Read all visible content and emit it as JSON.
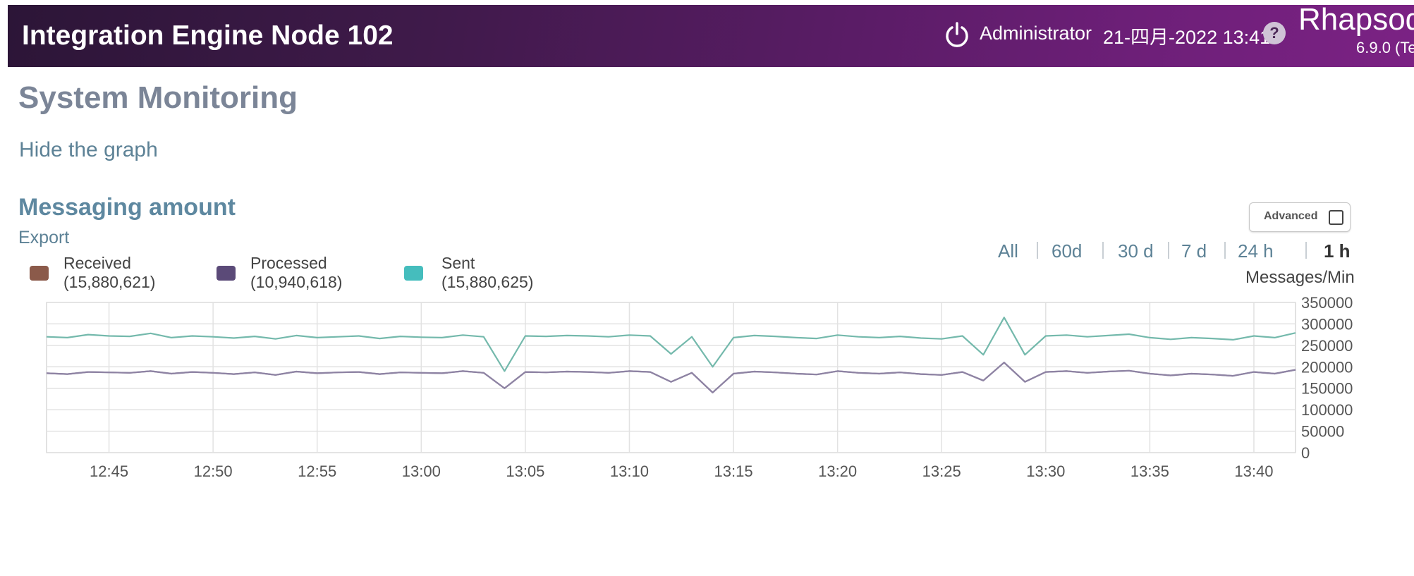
{
  "header": {
    "app_title": "Integration Engine Node 102",
    "power_icon": "power-icon",
    "user": "Administrator",
    "datetime": "21-四月-2022 13:41",
    "help_label": "?",
    "brand": "Rhapsod",
    "version": "6.9.0 (Te"
  },
  "page": {
    "title": "System Monitoring",
    "hide_graph_label": "Hide the graph",
    "section_title": "Messaging amount",
    "export_label": "Export",
    "advanced_label": "Advanced"
  },
  "time_ranges": {
    "all": "All",
    "d60": "60d",
    "d30": "30 d",
    "d7": "7 d",
    "h24": "24 h",
    "h1": "1 h",
    "selected": "1 h"
  },
  "legend": {
    "received": {
      "name": "Received",
      "count": "(15,880,621)"
    },
    "processed": {
      "name": "Processed",
      "count": "(10,940,618)"
    },
    "sent": {
      "name": "Sent",
      "count": "(15,880,625)"
    }
  },
  "colors": {
    "received": "#8b5a4a",
    "processed": "#5b4a78",
    "sent": "#45bdbd",
    "sent_line": "#74b9ac",
    "processed_line": "#8e83a3"
  },
  "chart_data": {
    "type": "line",
    "ylabel": "Messages/Min",
    "ylim": [
      0,
      350000
    ],
    "yticks": [
      "350000",
      "300000",
      "250000",
      "200000",
      "150000",
      "100000",
      "50000",
      "0"
    ],
    "xticks": [
      "12:45",
      "12:50",
      "12:55",
      "13:00",
      "13:05",
      "13:10",
      "13:15",
      "13:20",
      "13:25",
      "13:30",
      "13:35",
      "13:40"
    ],
    "x_start": "12:42",
    "x_end": "13:42",
    "grid": true,
    "x": [
      "12:42",
      "12:43",
      "12:44",
      "12:45",
      "12:46",
      "12:47",
      "12:48",
      "12:49",
      "12:50",
      "12:51",
      "12:52",
      "12:53",
      "12:54",
      "12:55",
      "12:56",
      "12:57",
      "12:58",
      "12:59",
      "13:00",
      "13:01",
      "13:02",
      "13:03",
      "13:04",
      "13:05",
      "13:06",
      "13:07",
      "13:08",
      "13:09",
      "13:10",
      "13:11",
      "13:12",
      "13:13",
      "13:14",
      "13:15",
      "13:16",
      "13:17",
      "13:18",
      "13:19",
      "13:20",
      "13:21",
      "13:22",
      "13:23",
      "13:24",
      "13:25",
      "13:26",
      "13:27",
      "13:28",
      "13:29",
      "13:30",
      "13:31",
      "13:32",
      "13:33",
      "13:34",
      "13:35",
      "13:36",
      "13:37",
      "13:38",
      "13:39",
      "13:40",
      "13:41",
      "13:42"
    ],
    "series": [
      {
        "name": "Sent",
        "values": [
          270000,
          268000,
          275000,
          272000,
          271000,
          278000,
          268000,
          272000,
          270000,
          267000,
          271000,
          265000,
          273000,
          268000,
          270000,
          272000,
          266000,
          271000,
          269000,
          268000,
          274000,
          270000,
          190000,
          272000,
          271000,
          273000,
          272000,
          270000,
          274000,
          272000,
          230000,
          270000,
          200000,
          268000,
          273000,
          271000,
          268000,
          266000,
          274000,
          270000,
          268000,
          271000,
          267000,
          265000,
          272000,
          228000,
          315000,
          228000,
          272000,
          274000,
          270000,
          273000,
          276000,
          268000,
          264000,
          268000,
          266000,
          263000,
          272000,
          268000,
          279000
        ]
      },
      {
        "name": "Processed",
        "values": [
          185000,
          183000,
          188000,
          187000,
          186000,
          190000,
          184000,
          188000,
          186000,
          183000,
          187000,
          181000,
          189000,
          185000,
          187000,
          188000,
          183000,
          187000,
          186000,
          185000,
          190000,
          186000,
          150000,
          188000,
          187000,
          189000,
          188000,
          186000,
          190000,
          188000,
          165000,
          186000,
          140000,
          184000,
          189000,
          187000,
          184000,
          182000,
          190000,
          186000,
          184000,
          187000,
          183000,
          181000,
          188000,
          168000,
          210000,
          165000,
          188000,
          190000,
          186000,
          189000,
          191000,
          184000,
          180000,
          184000,
          182000,
          179000,
          188000,
          184000,
          193000
        ]
      },
      {
        "name": "Received",
        "values": [
          185000,
          183000,
          188000,
          187000,
          186000,
          190000,
          184000,
          188000,
          186000,
          183000,
          187000,
          181000,
          189000,
          185000,
          187000,
          188000,
          183000,
          187000,
          186000,
          185000,
          190000,
          186000,
          150000,
          188000,
          187000,
          189000,
          188000,
          186000,
          190000,
          188000,
          165000,
          186000,
          140000,
          184000,
          189000,
          187000,
          184000,
          182000,
          190000,
          186000,
          184000,
          187000,
          183000,
          181000,
          188000,
          168000,
          210000,
          165000,
          188000,
          190000,
          186000,
          189000,
          191000,
          184000,
          180000,
          184000,
          182000,
          179000,
          188000,
          184000,
          193000
        ]
      }
    ]
  }
}
